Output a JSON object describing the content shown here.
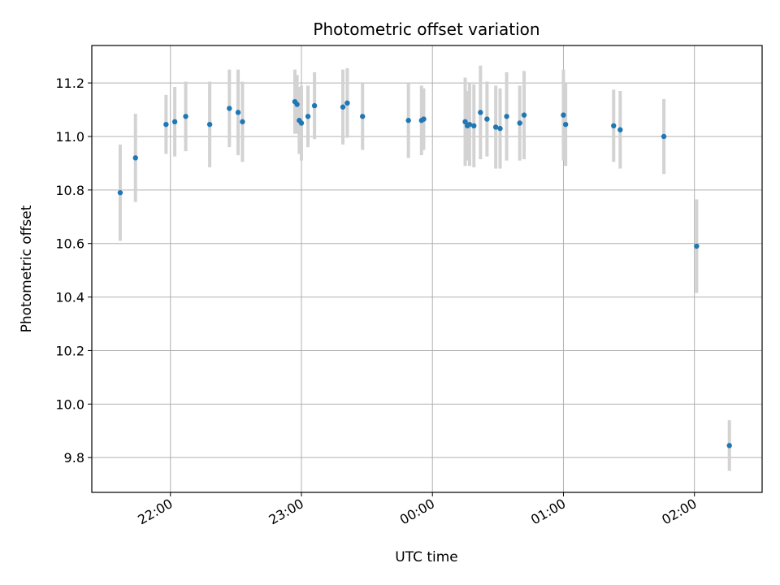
{
  "chart_data": {
    "type": "scatter",
    "title": "Photometric offset variation",
    "xlabel": "UTC time",
    "ylabel": "Photometric offset",
    "xlim": [
      "2023-01-01T21:24",
      "2023-01-02T02:31"
    ],
    "ylim": [
      9.67,
      11.34
    ],
    "grid": true,
    "x_ticks": [
      "2023-01-01T22:00",
      "2023-01-01T23:00",
      "2023-01-02T00:00",
      "2023-01-02T01:00",
      "2023-01-02T02:00"
    ],
    "x_tick_labels": [
      "22:00",
      "23:00",
      "00:00",
      "01:00",
      "02:00"
    ],
    "y_ticks": [
      9.8,
      10.0,
      10.2,
      10.4,
      10.6,
      10.8,
      11.0,
      11.2
    ],
    "y_tick_labels": [
      "9.8",
      "10.0",
      "10.2",
      "10.4",
      "10.6",
      "10.8",
      "11.0",
      "11.2"
    ],
    "colors": {
      "marker": "#1f77b4",
      "errorbar": "#d3d3d3",
      "grid": "#b0b0b0"
    },
    "points": [
      {
        "t": "2023-01-01T21:37",
        "y": 10.79,
        "err": 0.18
      },
      {
        "t": "2023-01-01T21:44",
        "y": 10.92,
        "err": 0.165
      },
      {
        "t": "2023-01-01T21:58",
        "y": 11.045,
        "err": 0.11
      },
      {
        "t": "2023-01-01T22:02",
        "y": 11.055,
        "err": 0.13
      },
      {
        "t": "2023-01-01T22:07",
        "y": 11.075,
        "err": 0.13
      },
      {
        "t": "2023-01-01T22:18",
        "y": 11.045,
        "err": 0.16
      },
      {
        "t": "2023-01-01T22:27",
        "y": 11.105,
        "err": 0.145
      },
      {
        "t": "2023-01-01T22:31",
        "y": 11.09,
        "err": 0.16
      },
      {
        "t": "2023-01-01T22:33",
        "y": 11.055,
        "err": 0.15
      },
      {
        "t": "2023-01-01T22:57",
        "y": 11.13,
        "err": 0.12
      },
      {
        "t": "2023-01-01T22:58",
        "y": 11.12,
        "err": 0.11
      },
      {
        "t": "2023-01-01T22:59",
        "y": 11.06,
        "err": 0.125
      },
      {
        "t": "2023-01-01T23:00",
        "y": 11.05,
        "err": 0.14
      },
      {
        "t": "2023-01-01T23:03",
        "y": 11.075,
        "err": 0.115
      },
      {
        "t": "2023-01-01T23:06",
        "y": 11.115,
        "err": 0.125
      },
      {
        "t": "2023-01-01T23:19",
        "y": 11.11,
        "err": 0.14
      },
      {
        "t": "2023-01-01T23:21",
        "y": 11.125,
        "err": 0.13
      },
      {
        "t": "2023-01-01T23:28",
        "y": 11.075,
        "err": 0.125
      },
      {
        "t": "2023-01-01T23:49",
        "y": 11.06,
        "err": 0.14
      },
      {
        "t": "2023-01-01T23:55",
        "y": 11.06,
        "err": 0.13
      },
      {
        "t": "2023-01-01T23:56",
        "y": 11.065,
        "err": 0.115
      },
      {
        "t": "2023-01-02T00:15",
        "y": 11.055,
        "err": 0.165
      },
      {
        "t": "2023-01-02T00:16",
        "y": 11.04,
        "err": 0.13
      },
      {
        "t": "2023-01-02T00:17",
        "y": 11.045,
        "err": 0.155
      },
      {
        "t": "2023-01-02T00:19",
        "y": 11.04,
        "err": 0.155
      },
      {
        "t": "2023-01-02T00:22",
        "y": 11.09,
        "err": 0.175
      },
      {
        "t": "2023-01-02T00:25",
        "y": 11.065,
        "err": 0.14
      },
      {
        "t": "2023-01-02T00:29",
        "y": 11.035,
        "err": 0.155
      },
      {
        "t": "2023-01-02T00:31",
        "y": 11.03,
        "err": 0.15
      },
      {
        "t": "2023-01-02T00:34",
        "y": 11.075,
        "err": 0.165
      },
      {
        "t": "2023-01-02T00:40",
        "y": 11.05,
        "err": 0.14
      },
      {
        "t": "2023-01-02T00:42",
        "y": 11.08,
        "err": 0.165
      },
      {
        "t": "2023-01-02T01:00",
        "y": 11.08,
        "err": 0.17
      },
      {
        "t": "2023-01-02T01:01",
        "y": 11.045,
        "err": 0.155
      },
      {
        "t": "2023-01-02T01:23",
        "y": 11.04,
        "err": 0.135
      },
      {
        "t": "2023-01-02T01:26",
        "y": 11.025,
        "err": 0.145
      },
      {
        "t": "2023-01-02T01:46",
        "y": 11.0,
        "err": 0.14
      },
      {
        "t": "2023-01-02T02:01",
        "y": 10.59,
        "err": 0.175
      },
      {
        "t": "2023-01-02T02:16",
        "y": 9.845,
        "err": 0.095
      }
    ]
  }
}
